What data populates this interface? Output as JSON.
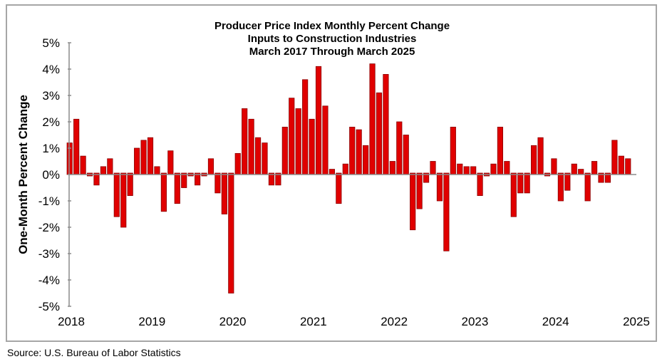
{
  "chart_data": {
    "type": "bar",
    "title": [
      "Producer Price Index Monthly Percent Change",
      "Inputs to Construction Industries",
      "March 2017 Through March 2025"
    ],
    "ylabel": "One-Month Percent Change",
    "xlabel": "",
    "ylim": [
      -5,
      5
    ],
    "yticks": [
      "5%",
      "4%",
      "3%",
      "2%",
      "1%",
      "0%",
      "-1%",
      "-2%",
      "-3%",
      "-4%",
      "-5%"
    ],
    "xticks": [
      "2018",
      "2019",
      "2020",
      "2021",
      "2022",
      "2023",
      "2024",
      "2025"
    ],
    "bar_color": "#e00000",
    "grid": false,
    "values": [
      1.2,
      2.1,
      0.7,
      0,
      -0.4,
      0.3,
      0.6,
      -1.6,
      -2.0,
      -0.8,
      1.0,
      1.3,
      1.4,
      0.3,
      -1.4,
      0.9,
      -1.1,
      -0.5,
      0,
      -0.4,
      0,
      0.6,
      -0.7,
      -1.5,
      -4.5,
      0.8,
      2.5,
      2.1,
      1.4,
      1.2,
      -0.4,
      -0.4,
      1.8,
      2.9,
      2.5,
      3.6,
      2.1,
      4.1,
      2.6,
      0.2,
      -1.1,
      0.4,
      1.8,
      1.7,
      1.1,
      4.2,
      3.1,
      3.8,
      0.5,
      2.0,
      1.5,
      -2.1,
      -1.3,
      -0.3,
      0.5,
      -1.0,
      -2.9,
      1.8,
      0.4,
      0.3,
      0.3,
      -0.8,
      0,
      0.4,
      1.8,
      0.5,
      -1.6,
      -0.7,
      -0.7,
      1.1,
      1.4,
      0,
      0.6,
      -1.0,
      -0.6,
      0.4,
      0.2,
      -1.0,
      0.5,
      -0.3,
      -0.3,
      1.3,
      0.7,
      0.6
    ]
  },
  "source": "Source: U.S. Bureau of Labor Statistics"
}
